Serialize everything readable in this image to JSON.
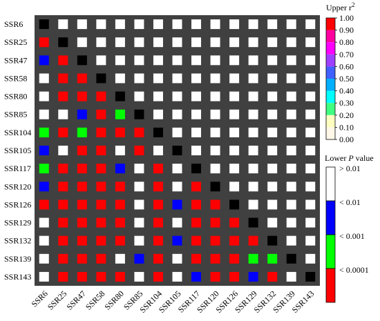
{
  "chart_data": {
    "type": "heatmap",
    "markers": [
      "SSR6",
      "SSR25",
      "SSR47",
      "SSR58",
      "SSR80",
      "SSR85",
      "SSR104",
      "SSR105",
      "SSR117",
      "SSR120",
      "SSR126",
      "SSR129",
      "SSR132",
      "SSR139",
      "SSR143"
    ],
    "upper_legend": {
      "title_main": "Upper r",
      "title_sup": "2",
      "ticks": [
        "1.00",
        "0.90",
        "0.80",
        "0.70",
        "0.60",
        "0.50",
        "0.40",
        "0.30",
        "0.20",
        "0.10",
        "0.00"
      ],
      "colors": [
        "#ff0000",
        "#ff00a0",
        "#ff00ff",
        "#a040ff",
        "#4060ff",
        "#00b0ff",
        "#00ffff",
        "#40ff80",
        "#ffffc0",
        "#fff8e8"
      ]
    },
    "lower_legend": {
      "title_main": "Lower ",
      "title_italic": "P",
      "title_rest": " value",
      "labels": [
        "> 0.01",
        "< 0.01",
        "< 0.001",
        "< 0.0001"
      ],
      "colors": [
        "#ffffff",
        "#0000ff",
        "#00ff00",
        "#ff0000"
      ]
    },
    "upper_value": "0.00",
    "lower_classes": [
      [],
      [
        3
      ],
      [
        1,
        3
      ],
      [
        0,
        3,
        3
      ],
      [
        0,
        3,
        3,
        3
      ],
      [
        0,
        0,
        1,
        3,
        2
      ],
      [
        2,
        3,
        2,
        3,
        3,
        3
      ],
      [
        1,
        0,
        3,
        3,
        0,
        3,
        0
      ],
      [
        2,
        3,
        3,
        3,
        1,
        0,
        3,
        0
      ],
      [
        1,
        3,
        3,
        3,
        3,
        0,
        3,
        0,
        3
      ],
      [
        3,
        3,
        3,
        3,
        3,
        0,
        3,
        1,
        3,
        3
      ],
      [
        0,
        3,
        3,
        3,
        3,
        0,
        3,
        0,
        3,
        3,
        3
      ],
      [
        0,
        3,
        3,
        3,
        3,
        0,
        3,
        1,
        3,
        3,
        3,
        3
      ],
      [
        0,
        3,
        3,
        3,
        0,
        1,
        3,
        0,
        3,
        3,
        3,
        2,
        2
      ],
      [
        0,
        3,
        3,
        3,
        3,
        0,
        3,
        0,
        1,
        3,
        3,
        1,
        3,
        0
      ]
    ]
  }
}
